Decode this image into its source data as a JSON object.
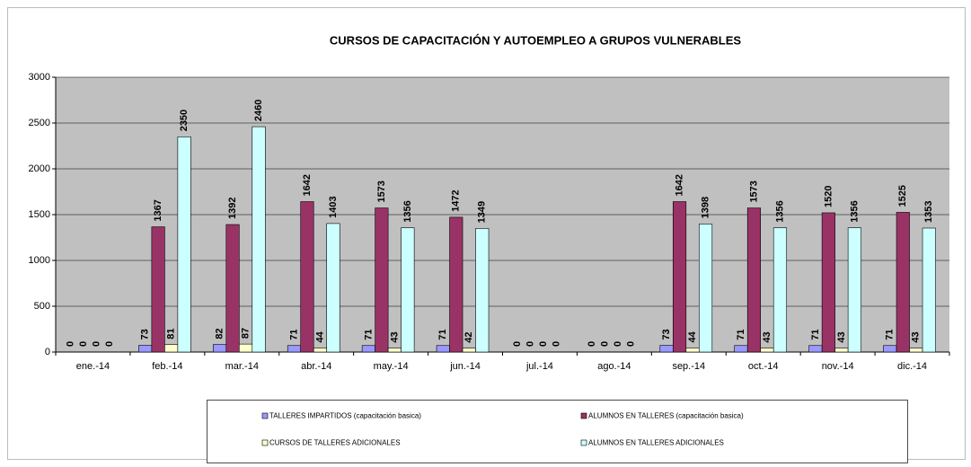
{
  "chart_data": {
    "type": "bar",
    "title": "CURSOS DE CAPACITACIÓN Y AUTOEMPLEO A GRUPOS VULNERABLES",
    "categories": [
      "ene.-14",
      "feb.-14",
      "mar.-14",
      "abr.-14",
      "may.-14",
      "jun.-14",
      "jul.-14",
      "ago.-14",
      "sep.-14",
      "oct.-14",
      "nov.-14",
      "dic.-14"
    ],
    "series": [
      {
        "name": "TALLERES IMPARTIDOS (capacitación basica)",
        "color": "#9999ff",
        "label_color": "#9999ff",
        "values": [
          0,
          73,
          82,
          71,
          71,
          71,
          0,
          0,
          73,
          71,
          71,
          71
        ]
      },
      {
        "name": "ALUMNOS EN TALLERES (capacitación basica)",
        "color": "#993366",
        "label_color": "#993366",
        "values": [
          0,
          1367,
          1392,
          1642,
          1573,
          1472,
          0,
          0,
          1642,
          1573,
          1520,
          1525
        ]
      },
      {
        "name": "CURSOS DE TALLERES ADICIONALES",
        "color": "#ffffcc",
        "label_color": "#f2e8a0",
        "values": [
          0,
          81,
          87,
          44,
          43,
          42,
          0,
          0,
          44,
          43,
          43,
          43
        ]
      },
      {
        "name": "ALUMNOS EN TALLERES ADICIONALES",
        "color": "#ccffff",
        "label_color": "#ccffff",
        "values": [
          0,
          2350,
          2460,
          1403,
          1356,
          1349,
          0,
          0,
          1398,
          1356,
          1356,
          1353
        ]
      }
    ],
    "ylim": [
      0,
      3000
    ],
    "yticks": [
      0,
      500,
      1000,
      1500,
      2000,
      2500,
      3000
    ],
    "grid": true,
    "legend": "bottom"
  }
}
